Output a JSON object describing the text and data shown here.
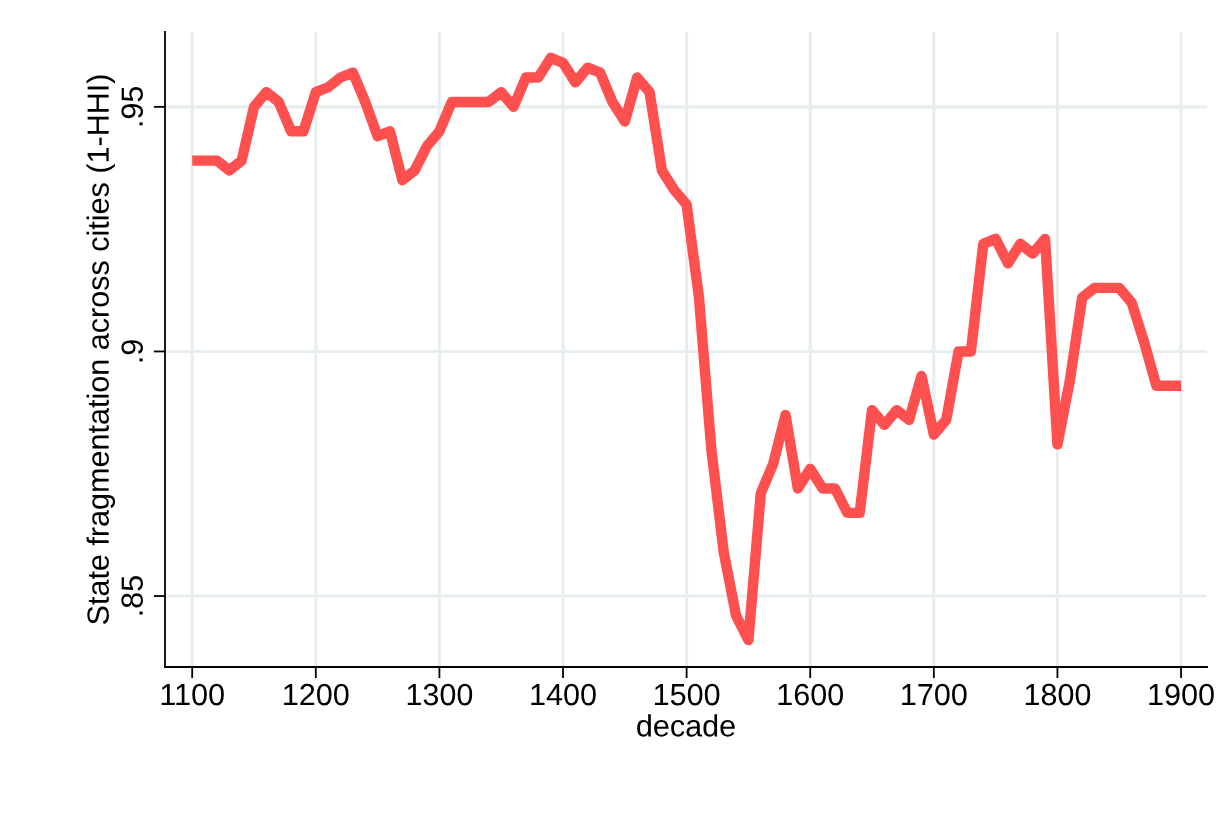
{
  "chart_data": {
    "type": "line",
    "xlabel": "decade",
    "ylabel": "State fragmentation across cities (1-HHI)",
    "x": [
      1100,
      1110,
      1120,
      1130,
      1140,
      1150,
      1160,
      1170,
      1180,
      1190,
      1200,
      1210,
      1220,
      1230,
      1240,
      1250,
      1260,
      1270,
      1280,
      1290,
      1300,
      1310,
      1320,
      1330,
      1340,
      1350,
      1360,
      1370,
      1380,
      1390,
      1400,
      1410,
      1420,
      1430,
      1440,
      1450,
      1460,
      1470,
      1480,
      1490,
      1500,
      1510,
      1520,
      1530,
      1540,
      1550,
      1560,
      1570,
      1580,
      1590,
      1600,
      1610,
      1620,
      1630,
      1640,
      1650,
      1660,
      1670,
      1680,
      1690,
      1700,
      1710,
      1720,
      1730,
      1740,
      1750,
      1760,
      1770,
      1780,
      1790,
      1800,
      1810,
      1820,
      1830,
      1840,
      1850,
      1860,
      1870,
      1880,
      1890,
      1900
    ],
    "series": [
      {
        "color": "#ff5050",
        "values": [
          0.939,
          0.939,
          0.939,
          0.937,
          0.939,
          0.95,
          0.953,
          0.951,
          0.945,
          0.945,
          0.953,
          0.954,
          0.956,
          0.957,
          0.951,
          0.944,
          0.945,
          0.935,
          0.937,
          0.942,
          0.945,
          0.951,
          0.951,
          0.951,
          0.951,
          0.953,
          0.95,
          0.956,
          0.956,
          0.96,
          0.959,
          0.955,
          0.958,
          0.957,
          0.951,
          0.947,
          0.956,
          0.953,
          0.937,
          0.933,
          0.93,
          0.911,
          0.88,
          0.859,
          0.846,
          0.841,
          0.871,
          0.877,
          0.887,
          0.872,
          0.876,
          0.872,
          0.872,
          0.867,
          0.867,
          0.888,
          0.885,
          0.888,
          0.886,
          0.895,
          0.883,
          0.886,
          0.9,
          0.9,
          0.922,
          0.923,
          0.918,
          0.922,
          0.92,
          0.923,
          0.881,
          0.894,
          0.911,
          0.913,
          0.913,
          0.913,
          0.91,
          0.902,
          0.893,
          0.893,
          0.893
        ]
      }
    ],
    "xlim": [
      1078,
      1921
    ],
    "ylim": [
      0.8355,
      0.9653
    ],
    "xticks": [
      1100,
      1200,
      1300,
      1400,
      1500,
      1600,
      1700,
      1800,
      1900
    ],
    "yticks": [
      {
        "value": 0.85,
        "label": ".85"
      },
      {
        "value": 0.9,
        "label": ".9"
      },
      {
        "value": 0.95,
        "label": ".95"
      }
    ],
    "grid": true,
    "marker": "none",
    "line_style": "solid",
    "legend": false
  }
}
